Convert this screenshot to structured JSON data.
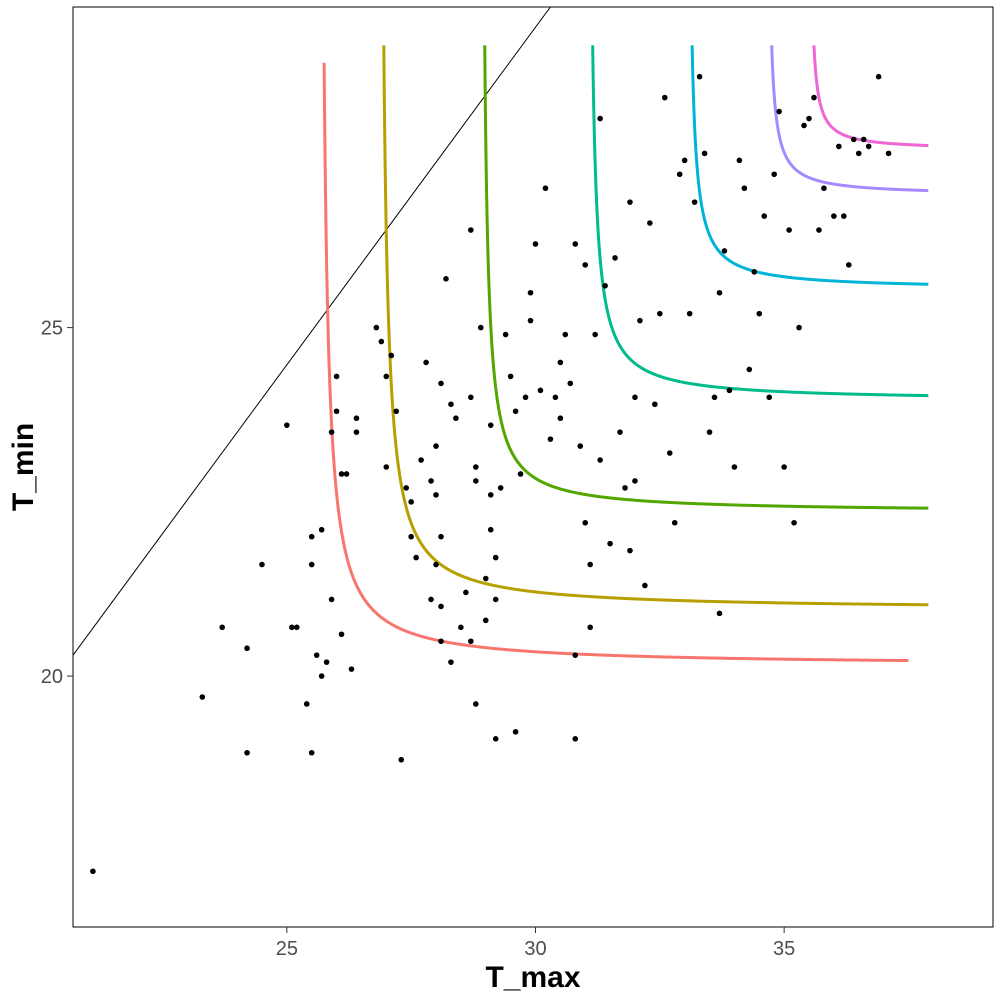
{
  "chart_data": {
    "type": "scatter",
    "xlabel": "T_max",
    "ylabel": "T_min",
    "xlim": [
      20.7,
      39.2
    ],
    "ylim": [
      16.4,
      29.6
    ],
    "x_ticks": [
      25,
      30,
      35
    ],
    "y_ticks": [
      20,
      25
    ],
    "x_tick_labels": [
      "25",
      "30",
      "35"
    ],
    "y_tick_labels": [
      "20",
      "25"
    ],
    "grid": false,
    "legend": "none",
    "line_color": "#000000",
    "point_color": "#000000",
    "reference_line": {
      "x": [
        20.7,
        30.3
      ],
      "y": [
        20.3,
        29.6
      ]
    },
    "contours": [
      {
        "color": "#F8766D",
        "x_asym": 25.65,
        "y_asym": 20.15,
        "x_top": 25.75,
        "y_top": 28.8,
        "x_end": 37.5,
        "k": 0.22
      },
      {
        "color": "#B79F00",
        "x_asym": 26.85,
        "y_asym": 20.95,
        "x_top": 26.95,
        "y_top": 29.05,
        "x_end": 37.9,
        "k": 0.22
      },
      {
        "color": "#53A600",
        "x_asym": 28.9,
        "y_asym": 22.35,
        "x_top": 28.98,
        "y_top": 29.05,
        "x_end": 37.9,
        "k": 0.3
      },
      {
        "color": "#00BB8B",
        "x_asym": 31.05,
        "y_asym": 23.95,
        "x_top": 31.15,
        "y_top": 29.05,
        "x_end": 37.9,
        "k": 0.34
      },
      {
        "color": "#00B4D8",
        "x_asym": 33.05,
        "y_asym": 25.55,
        "x_top": 33.15,
        "y_top": 29.05,
        "x_end": 37.9,
        "k": 0.28
      },
      {
        "color": "#A58AFF",
        "x_asym": 34.65,
        "y_asym": 26.9,
        "x_top": 34.75,
        "y_top": 29.05,
        "x_end": 37.9,
        "k": 0.2
      },
      {
        "color": "#F066D2",
        "x_asym": 35.5,
        "y_asym": 27.55,
        "x_top": 35.6,
        "y_top": 29.05,
        "x_end": 37.9,
        "k": 0.16
      }
    ],
    "points": [
      [
        21.1,
        17.2
      ],
      [
        23.3,
        19.7
      ],
      [
        23.7,
        20.7
      ],
      [
        24.2,
        18.9
      ],
      [
        24.2,
        20.4
      ],
      [
        24.5,
        21.6
      ],
      [
        25.0,
        23.6
      ],
      [
        25.1,
        20.7
      ],
      [
        25.2,
        20.7
      ],
      [
        25.4,
        19.6
      ],
      [
        25.5,
        18.9
      ],
      [
        25.5,
        22.0
      ],
      [
        25.5,
        21.6
      ],
      [
        25.6,
        20.3
      ],
      [
        25.7,
        20.0
      ],
      [
        25.7,
        22.1
      ],
      [
        25.8,
        20.2
      ],
      [
        25.9,
        21.1
      ],
      [
        25.9,
        23.5
      ],
      [
        26.0,
        23.8
      ],
      [
        26.0,
        24.3
      ],
      [
        26.1,
        20.6
      ],
      [
        26.1,
        22.9
      ],
      [
        26.2,
        22.9
      ],
      [
        26.3,
        20.1
      ],
      [
        26.4,
        23.5
      ],
      [
        26.4,
        23.7
      ],
      [
        26.8,
        25.0
      ],
      [
        26.9,
        24.8
      ],
      [
        27.0,
        24.3
      ],
      [
        27.0,
        23.0
      ],
      [
        27.1,
        24.6
      ],
      [
        27.2,
        23.8
      ],
      [
        27.3,
        18.8
      ],
      [
        27.4,
        22.7
      ],
      [
        27.5,
        22.5
      ],
      [
        27.5,
        22.0
      ],
      [
        27.6,
        21.7
      ],
      [
        27.7,
        23.1
      ],
      [
        27.8,
        24.5
      ],
      [
        27.9,
        21.1
      ],
      [
        27.9,
        22.8
      ],
      [
        28.0,
        21.6
      ],
      [
        28.0,
        23.3
      ],
      [
        28.0,
        22.6
      ],
      [
        28.1,
        21.0
      ],
      [
        28.1,
        20.5
      ],
      [
        28.1,
        22.0
      ],
      [
        28.1,
        24.2
      ],
      [
        28.2,
        25.7
      ],
      [
        28.3,
        23.9
      ],
      [
        28.3,
        20.2
      ],
      [
        28.4,
        23.7
      ],
      [
        28.5,
        20.7
      ],
      [
        28.6,
        21.2
      ],
      [
        28.7,
        24.0
      ],
      [
        28.7,
        26.4
      ],
      [
        28.8,
        23.0
      ],
      [
        28.8,
        22.8
      ],
      [
        28.7,
        20.5
      ],
      [
        28.8,
        19.6
      ],
      [
        28.9,
        25.0
      ],
      [
        29.0,
        20.8
      ],
      [
        29.0,
        21.4
      ],
      [
        29.1,
        23.6
      ],
      [
        29.1,
        22.6
      ],
      [
        29.1,
        22.1
      ],
      [
        29.2,
        21.1
      ],
      [
        29.2,
        21.7
      ],
      [
        29.2,
        19.1
      ],
      [
        29.3,
        22.7
      ],
      [
        29.4,
        24.9
      ],
      [
        29.5,
        24.3
      ],
      [
        29.6,
        23.8
      ],
      [
        29.6,
        19.2
      ],
      [
        29.7,
        22.9
      ],
      [
        29.8,
        24.0
      ],
      [
        29.9,
        25.1
      ],
      [
        29.9,
        25.5
      ],
      [
        30.0,
        26.2
      ],
      [
        30.1,
        24.1
      ],
      [
        30.2,
        27.0
      ],
      [
        30.3,
        23.4
      ],
      [
        30.4,
        24.0
      ],
      [
        30.5,
        24.5
      ],
      [
        30.5,
        23.7
      ],
      [
        30.6,
        24.9
      ],
      [
        30.7,
        24.2
      ],
      [
        30.8,
        20.3
      ],
      [
        30.8,
        19.1
      ],
      [
        30.8,
        26.2
      ],
      [
        30.9,
        23.3
      ],
      [
        31.0,
        25.9
      ],
      [
        31.0,
        22.2
      ],
      [
        31.1,
        20.7
      ],
      [
        31.1,
        21.6
      ],
      [
        31.2,
        24.9
      ],
      [
        31.3,
        28.0
      ],
      [
        31.3,
        23.1
      ],
      [
        31.4,
        25.6
      ],
      [
        31.5,
        21.9
      ],
      [
        31.6,
        26.0
      ],
      [
        31.7,
        23.5
      ],
      [
        31.8,
        22.7
      ],
      [
        31.9,
        26.8
      ],
      [
        31.9,
        21.8
      ],
      [
        32.0,
        24.0
      ],
      [
        32.0,
        22.8
      ],
      [
        32.1,
        25.1
      ],
      [
        32.2,
        21.3
      ],
      [
        32.3,
        26.5
      ],
      [
        32.4,
        23.9
      ],
      [
        32.5,
        25.2
      ],
      [
        32.6,
        28.3
      ],
      [
        32.7,
        23.2
      ],
      [
        32.8,
        22.2
      ],
      [
        32.9,
        27.2
      ],
      [
        33.0,
        27.4
      ],
      [
        33.1,
        25.2
      ],
      [
        33.2,
        26.8
      ],
      [
        33.3,
        28.6
      ],
      [
        33.4,
        27.5
      ],
      [
        33.5,
        23.5
      ],
      [
        33.6,
        24.0
      ],
      [
        33.7,
        25.5
      ],
      [
        33.7,
        20.9
      ],
      [
        33.8,
        26.1
      ],
      [
        33.9,
        24.1
      ],
      [
        34.0,
        23.0
      ],
      [
        34.1,
        27.4
      ],
      [
        34.2,
        27.0
      ],
      [
        34.3,
        24.4
      ],
      [
        34.4,
        25.8
      ],
      [
        34.5,
        25.2
      ],
      [
        34.6,
        26.6
      ],
      [
        34.7,
        24.0
      ],
      [
        34.8,
        27.2
      ],
      [
        34.9,
        28.1
      ],
      [
        35.0,
        23.0
      ],
      [
        35.1,
        26.4
      ],
      [
        35.2,
        22.2
      ],
      [
        35.3,
        25.0
      ],
      [
        35.4,
        27.9
      ],
      [
        35.5,
        28.0
      ],
      [
        35.6,
        28.3
      ],
      [
        35.7,
        26.4
      ],
      [
        35.8,
        27.0
      ],
      [
        36.0,
        26.6
      ],
      [
        36.1,
        27.6
      ],
      [
        36.2,
        26.6
      ],
      [
        36.3,
        25.9
      ],
      [
        36.4,
        27.7
      ],
      [
        36.5,
        27.5
      ],
      [
        36.6,
        27.7
      ],
      [
        36.7,
        27.6
      ],
      [
        36.9,
        28.6
      ],
      [
        37.1,
        27.5
      ]
    ]
  }
}
